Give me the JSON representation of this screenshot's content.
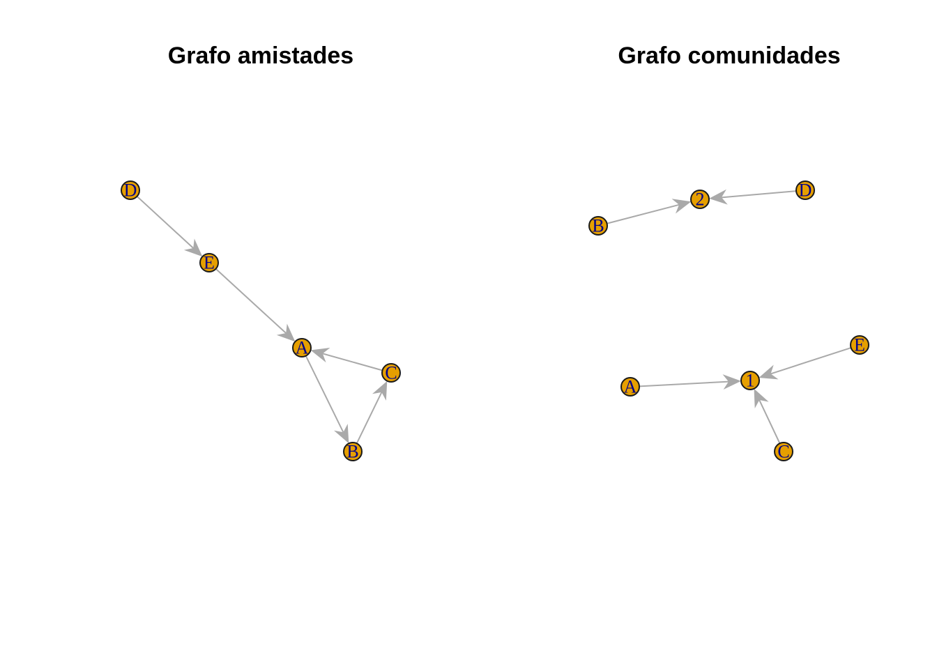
{
  "node_color": "#E69F00",
  "label_color": "#00008B",
  "edge_color": "#A9A9A9",
  "graphs": [
    {
      "title": "Grafo amistades",
      "nodes": [
        {
          "id": "D",
          "label": "D"
        },
        {
          "id": "E",
          "label": "E"
        },
        {
          "id": "A",
          "label": "A"
        },
        {
          "id": "C",
          "label": "C"
        },
        {
          "id": "B",
          "label": "B"
        }
      ],
      "edges": [
        {
          "from": "D",
          "to": "E"
        },
        {
          "from": "E",
          "to": "A"
        },
        {
          "from": "C",
          "to": "A"
        },
        {
          "from": "A",
          "to": "B"
        },
        {
          "from": "B",
          "to": "C"
        }
      ]
    },
    {
      "title": "Grafo comunidades",
      "nodes": [
        {
          "id": "2",
          "label": "2"
        },
        {
          "id": "D",
          "label": "D"
        },
        {
          "id": "B",
          "label": "B"
        },
        {
          "id": "E",
          "label": "E"
        },
        {
          "id": "1",
          "label": "1"
        },
        {
          "id": "A",
          "label": "A"
        },
        {
          "id": "C",
          "label": "C"
        }
      ],
      "edges": [
        {
          "from": "B",
          "to": "2"
        },
        {
          "from": "D",
          "to": "2"
        },
        {
          "from": "A",
          "to": "1"
        },
        {
          "from": "E",
          "to": "1"
        },
        {
          "from": "C",
          "to": "1"
        }
      ]
    }
  ]
}
